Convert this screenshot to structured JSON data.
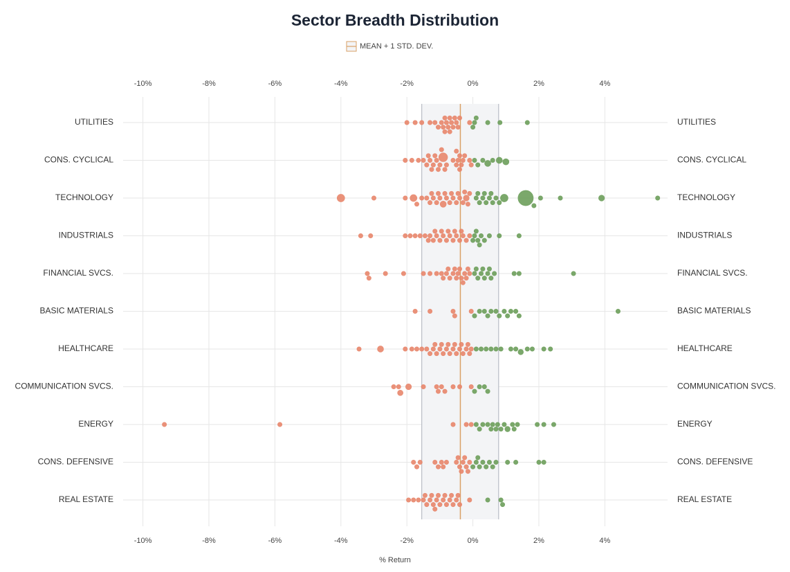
{
  "chart_data": {
    "type": "beeswarm",
    "title": "Sector Breadth Distribution",
    "legend_label": "MEAN + 1 STD. DEV.",
    "x_label": "% Return",
    "xlim": [
      -10.6,
      5.9
    ],
    "xticks": [
      {
        "value": -10,
        "label": "-10%"
      },
      {
        "value": -8,
        "label": "-8%"
      },
      {
        "value": -6,
        "label": "-6%"
      },
      {
        "value": -4,
        "label": "-4%"
      },
      {
        "value": -2,
        "label": "-2%"
      },
      {
        "value": 0,
        "label": "0%"
      },
      {
        "value": 2,
        "label": "2%"
      },
      {
        "value": 4,
        "label": "4%"
      }
    ],
    "mean": -0.38,
    "band": [
      -1.55,
      0.78
    ],
    "grid": true,
    "negative_color": "#e8866c",
    "positive_color": "#6d9e5b",
    "band_color": "#f3f4f6",
    "mean_color": "#d9a066",
    "series": [
      {
        "name": "UTILITIES",
        "values": [
          -2.0,
          -1.75,
          -1.55,
          -1.3,
          -1.15,
          -1.05,
          -0.95,
          -0.9,
          -0.85,
          -0.8,
          -0.75,
          -0.7,
          -0.65,
          -0.6,
          -0.55,
          -0.5,
          -0.45,
          -0.4,
          -0.85,
          -0.7,
          -0.1,
          0.0,
          0.05,
          0.1,
          0.45,
          0.82,
          1.65
        ]
      },
      {
        "name": "CONS. CYCLICAL",
        "values": [
          -2.05,
          -1.85,
          -1.65,
          -1.5,
          -1.4,
          -1.3,
          -1.2,
          -1.1,
          -1.0,
          -0.9,
          -0.8,
          -1.35,
          -1.25,
          -1.15,
          -1.05,
          -0.95,
          -0.85,
          -0.6,
          -0.5,
          -0.45,
          -0.4,
          -0.35,
          -0.3,
          -0.25,
          -0.5,
          -0.4,
          -0.1,
          -0.05,
          0.05,
          0.15,
          0.3,
          0.45,
          0.6,
          0.8,
          1.0
        ],
        "sizes": [
          1,
          1,
          1,
          1,
          1,
          1,
          1,
          1,
          1,
          4,
          1,
          1,
          1,
          1,
          1,
          1,
          1,
          1,
          1,
          1,
          1,
          1,
          1,
          1,
          1,
          1,
          1,
          1,
          1,
          1,
          1,
          2,
          1,
          2,
          2
        ]
      },
      {
        "name": "TECHNOLOGY",
        "values": [
          -4.0,
          -3.0,
          -2.05,
          -1.8,
          -1.7,
          -1.55,
          -1.4,
          -1.3,
          -1.2,
          -1.1,
          -1.0,
          -0.9,
          -0.8,
          -0.7,
          -0.6,
          -0.5,
          -0.4,
          -0.3,
          -0.2,
          -1.25,
          -1.05,
          -0.85,
          -0.65,
          -0.45,
          -0.25,
          -0.15,
          -0.1,
          0.1,
          0.2,
          0.3,
          0.4,
          0.5,
          0.6,
          0.7,
          0.8,
          0.15,
          0.35,
          0.55,
          0.95,
          1.6,
          1.85,
          2.05,
          2.65,
          3.9,
          5.6
        ],
        "sizes": [
          3,
          1,
          1,
          2.5,
          1,
          1,
          1,
          1,
          1,
          1,
          1,
          2,
          1,
          1,
          1,
          1,
          1,
          1,
          1.8,
          1,
          1,
          1,
          1,
          1,
          1,
          1,
          1,
          1,
          1,
          1,
          1,
          1,
          1,
          1,
          1,
          1,
          1,
          1,
          3,
          12,
          1,
          1,
          1,
          1.8,
          1
        ]
      },
      {
        "name": "INDUSTRIALS",
        "values": [
          -3.4,
          -3.1,
          -2.05,
          -1.9,
          -1.75,
          -1.6,
          -1.45,
          -1.3,
          -1.2,
          -1.1,
          -1.0,
          -0.9,
          -0.8,
          -0.7,
          -0.6,
          -0.5,
          -0.4,
          -0.3,
          -0.2,
          -0.1,
          -1.35,
          -1.15,
          -0.95,
          -0.75,
          -0.55,
          -0.35,
          0.0,
          0.05,
          0.15,
          0.25,
          0.35,
          0.1,
          0.2,
          0.5,
          0.8,
          1.4
        ]
      },
      {
        "name": "FINANCIAL SVCS.",
        "values": [
          -3.2,
          -3.15,
          -2.65,
          -2.1,
          -1.5,
          -1.3,
          -1.1,
          -0.95,
          -0.8,
          -0.7,
          -0.6,
          -0.5,
          -0.45,
          -0.35,
          -0.25,
          -0.2,
          -0.1,
          -0.9,
          -0.75,
          -0.55,
          -0.4,
          -0.3,
          -0.15,
          0.05,
          0.15,
          0.25,
          0.35,
          0.45,
          0.55,
          0.65,
          0.1,
          0.3,
          0.5,
          1.25,
          1.4,
          3.05
        ]
      },
      {
        "name": "BASIC MATERIALS",
        "values": [
          -1.75,
          -1.3,
          -0.6,
          -0.55,
          -0.05,
          0.05,
          0.2,
          0.35,
          0.45,
          0.55,
          0.7,
          0.8,
          0.95,
          1.05,
          1.15,
          1.3,
          1.4,
          4.4
        ]
      },
      {
        "name": "HEALTHCARE",
        "values": [
          -3.45,
          -2.8,
          -2.05,
          -1.85,
          -1.7,
          -1.55,
          -1.4,
          -1.3,
          -1.2,
          -1.1,
          -1.0,
          -0.9,
          -0.8,
          -0.7,
          -0.6,
          -0.5,
          -0.4,
          -0.3,
          -0.2,
          -0.1,
          -1.15,
          -0.95,
          -0.75,
          -0.55,
          -0.35,
          -0.15,
          -0.05,
          0.1,
          0.25,
          0.4,
          0.55,
          0.7,
          0.85,
          1.15,
          1.3,
          1.45,
          1.65,
          1.8,
          2.15,
          2.35
        ],
        "sizes": [
          1,
          2,
          1,
          1,
          1,
          1,
          1,
          1,
          1,
          1,
          1,
          1,
          1,
          1,
          1,
          1,
          1,
          1,
          1,
          1,
          1,
          1,
          1,
          1,
          1,
          1,
          1,
          1,
          1,
          1,
          1,
          1,
          1,
          1,
          1,
          1.5,
          1,
          1,
          1,
          1
        ]
      },
      {
        "name": "COMMUNICATION SVCS.",
        "values": [
          -2.4,
          -2.25,
          -2.2,
          -1.95,
          -1.5,
          -1.1,
          -1.05,
          -0.95,
          -0.85,
          -0.6,
          -0.4,
          -0.05,
          0.05,
          0.2,
          0.35,
          0.45
        ],
        "sizes": [
          1,
          1,
          1.6,
          1.8,
          1,
          1,
          1,
          1,
          1,
          1,
          1,
          1,
          1,
          1,
          1,
          1
        ]
      },
      {
        "name": "ENERGY",
        "values": [
          -9.35,
          -5.85,
          -0.6,
          -0.2,
          -0.05,
          0.1,
          0.2,
          0.45,
          0.55,
          0.6,
          0.7,
          0.75,
          0.85,
          0.95,
          1.05,
          1.2,
          1.25,
          1.35,
          1.95,
          2.15,
          2.45,
          0.3
        ],
        "sizes": [
          1,
          1,
          1,
          1,
          1,
          1,
          1,
          1,
          1,
          1,
          1,
          1,
          1,
          1,
          1.5,
          1,
          1,
          1,
          1,
          1,
          1,
          1
        ]
      },
      {
        "name": "CONS. DEFENSIVE",
        "values": [
          -1.8,
          -1.7,
          -1.6,
          -1.15,
          -1.05,
          -0.95,
          -0.9,
          -0.8,
          -0.5,
          -0.4,
          -0.3,
          -0.2,
          -0.1,
          -0.45,
          -0.35,
          -0.25,
          -0.15,
          0.0,
          0.1,
          0.2,
          0.3,
          0.4,
          0.5,
          0.6,
          0.7,
          0.15,
          1.05,
          1.3,
          2.0,
          2.15
        ]
      },
      {
        "name": "REAL ESTATE",
        "values": [
          -1.95,
          -1.8,
          -1.65,
          -1.5,
          -1.4,
          -1.3,
          -1.2,
          -1.1,
          -1.0,
          -0.9,
          -0.8,
          -0.7,
          -0.6,
          -0.5,
          -0.4,
          -1.45,
          -1.25,
          -1.15,
          -1.05,
          -0.85,
          -0.65,
          -0.45,
          -0.1,
          0.45,
          0.85,
          0.9
        ]
      }
    ]
  }
}
